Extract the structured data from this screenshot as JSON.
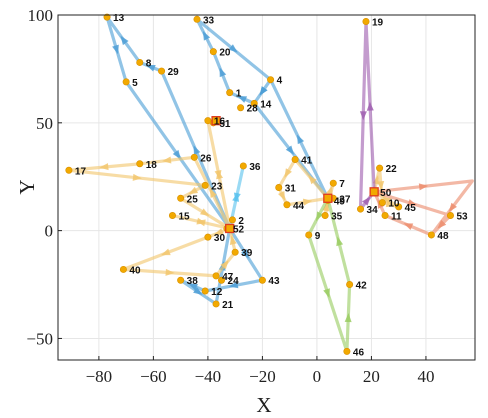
{
  "chart_data": {
    "type": "scatter",
    "xlabel": "X",
    "ylabel": "Y",
    "xlim": [
      -95,
      58
    ],
    "ylim": [
      -60,
      100
    ],
    "xticks": [
      -80,
      -60,
      -40,
      -20,
      0,
      20,
      40
    ],
    "yticks": [
      -50,
      0,
      50,
      100
    ],
    "grid": true,
    "nodes": [
      {
        "id": "1",
        "x": -32,
        "y": 64
      },
      {
        "id": "2",
        "x": -31,
        "y": 5
      },
      {
        "id": "4",
        "x": -17,
        "y": 70
      },
      {
        "id": "5",
        "x": -70,
        "y": 69
      },
      {
        "id": "7",
        "x": 6,
        "y": 22
      },
      {
        "id": "8",
        "x": -65,
        "y": 78
      },
      {
        "id": "9",
        "x": -3,
        "y": -2
      },
      {
        "id": "10",
        "x": 24,
        "y": 13
      },
      {
        "id": "11",
        "x": 25,
        "y": 7
      },
      {
        "id": "12",
        "x": -41,
        "y": -28
      },
      {
        "id": "13",
        "x": -77,
        "y": 99
      },
      {
        "id": "14",
        "x": -23,
        "y": 59
      },
      {
        "id": "15",
        "x": -53,
        "y": 7
      },
      {
        "id": "16",
        "x": -40,
        "y": 51
      },
      {
        "id": "17",
        "x": -91,
        "y": 28
      },
      {
        "id": "18",
        "x": -65,
        "y": 31
      },
      {
        "id": "19",
        "x": 18,
        "y": 97
      },
      {
        "id": "20",
        "x": -38,
        "y": 83
      },
      {
        "id": "21",
        "x": -37,
        "y": -34
      },
      {
        "id": "22",
        "x": 23,
        "y": 29
      },
      {
        "id": "23",
        "x": -41,
        "y": 21
      },
      {
        "id": "24",
        "x": -35,
        "y": -23
      },
      {
        "id": "25",
        "x": -50,
        "y": 15
      },
      {
        "id": "26",
        "x": -45,
        "y": 34
      },
      {
        "id": "27",
        "x": 6,
        "y": 15
      },
      {
        "id": "28",
        "x": -28,
        "y": 57
      },
      {
        "id": "29",
        "x": -57,
        "y": 74
      },
      {
        "id": "30",
        "x": -40,
        "y": -3
      },
      {
        "id": "31",
        "x": -14,
        "y": 20
      },
      {
        "id": "33",
        "x": -44,
        "y": 98
      },
      {
        "id": "34",
        "x": 16,
        "y": 10
      },
      {
        "id": "35",
        "x": 3,
        "y": 7
      },
      {
        "id": "36",
        "x": -27,
        "y": 30
      },
      {
        "id": "38",
        "x": -50,
        "y": -23
      },
      {
        "id": "39",
        "x": -30,
        "y": -10
      },
      {
        "id": "40",
        "x": -71,
        "y": -18
      },
      {
        "id": "41",
        "x": -8,
        "y": 33
      },
      {
        "id": "42",
        "x": 12,
        "y": -25
      },
      {
        "id": "43",
        "x": -20,
        "y": -23
      },
      {
        "id": "44",
        "x": -11,
        "y": 12
      },
      {
        "id": "45",
        "x": 30,
        "y": 11
      },
      {
        "id": "46",
        "x": 11,
        "y": -56
      },
      {
        "id": "47",
        "x": -37,
        "y": -21
      },
      {
        "id": "48",
        "x": 42,
        "y": -2
      },
      {
        "id": "49",
        "x": 4,
        "y": 14
      },
      {
        "id": "50",
        "x": 21,
        "y": 18
      },
      {
        "id": "51",
        "x": -38,
        "y": 50
      },
      {
        "id": "52",
        "x": -33,
        "y": 1
      },
      {
        "id": "53",
        "x": 49,
        "y": 7
      }
    ],
    "depots": [
      {
        "x": -37,
        "y": 51
      },
      {
        "x": -32,
        "y": 1
      },
      {
        "x": 4,
        "y": 15
      },
      {
        "x": 21,
        "y": 18
      }
    ],
    "routes": [
      {
        "color": "#4d9fd6",
        "points": [
          [
            4,
            15
          ],
          [
            -17,
            70
          ],
          [
            -23,
            59
          ],
          [
            -32,
            64
          ],
          [
            -38,
            83
          ],
          [
            -44,
            98
          ],
          [
            -17,
            70
          ],
          [
            -23,
            59
          ],
          [
            4,
            15
          ]
        ]
      },
      {
        "color": "#4d9fd6",
        "points": [
          [
            -32,
            1
          ],
          [
            -57,
            74
          ],
          [
            -65,
            78
          ],
          [
            -77,
            99
          ],
          [
            -70,
            69
          ],
          [
            -32,
            1
          ]
        ]
      },
      {
        "color": "#4d9fd6",
        "points": [
          [
            -32,
            1
          ],
          [
            -20,
            -23
          ],
          [
            -41,
            -28
          ],
          [
            -50,
            -23
          ],
          [
            -37,
            -34
          ],
          [
            -32,
            1
          ]
        ]
      },
      {
        "color": "#5cc3ee",
        "points": [
          [
            -32,
            1
          ],
          [
            -27,
            30
          ],
          [
            -32,
            1
          ]
        ]
      },
      {
        "color": "#f2c76e",
        "points": [
          [
            -32,
            1
          ],
          [
            -45,
            34
          ],
          [
            -65,
            31
          ],
          [
            -91,
            28
          ],
          [
            -41,
            21
          ],
          [
            -50,
            15
          ],
          [
            -32,
            1
          ],
          [
            -40,
            51
          ],
          [
            -32,
            1
          ]
        ]
      },
      {
        "color": "#f2c76e",
        "points": [
          [
            -32,
            1
          ],
          [
            -53,
            7
          ],
          [
            -32,
            1
          ],
          [
            -40,
            -3
          ],
          [
            -71,
            -18
          ],
          [
            -37,
            -21
          ],
          [
            -30,
            -10
          ],
          [
            -32,
            1
          ]
        ]
      },
      {
        "color": "#f2c76e",
        "points": [
          [
            4,
            15
          ],
          [
            -8,
            33
          ],
          [
            -14,
            20
          ],
          [
            -11,
            12
          ],
          [
            4,
            15
          ],
          [
            6,
            22
          ],
          [
            3,
            7
          ],
          [
            4,
            15
          ]
        ]
      },
      {
        "color": "#f2c76e",
        "points": [
          [
            21,
            18
          ],
          [
            23,
            29
          ],
          [
            24,
            13
          ],
          [
            30,
            11
          ],
          [
            21,
            18
          ]
        ]
      },
      {
        "color": "#a05fb0",
        "points": [
          [
            21,
            18
          ],
          [
            18,
            97
          ],
          [
            16,
            10
          ],
          [
            21,
            18
          ]
        ]
      },
      {
        "color": "#9acd62",
        "points": [
          [
            4,
            15
          ],
          [
            -3,
            -2
          ],
          [
            11,
            -56
          ],
          [
            12,
            -25
          ],
          [
            4,
            15
          ]
        ]
      },
      {
        "color": "#ec8d6d",
        "points": [
          [
            21,
            18
          ],
          [
            57,
            23
          ],
          [
            42,
            -2
          ],
          [
            25,
            7
          ],
          [
            21,
            18
          ],
          [
            49,
            7
          ],
          [
            42,
            -2
          ]
        ]
      }
    ]
  }
}
